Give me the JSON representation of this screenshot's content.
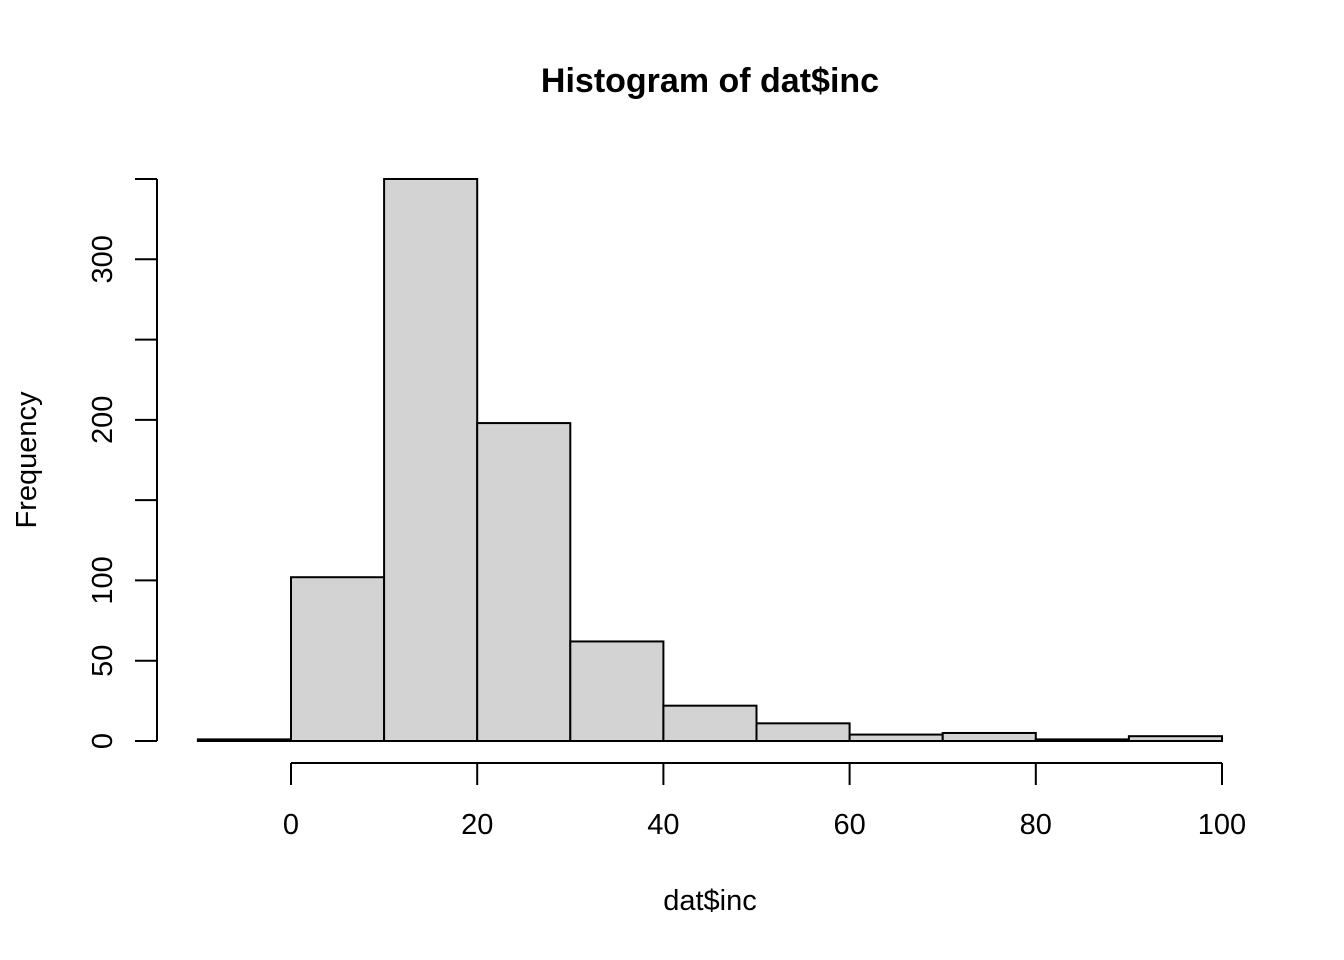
{
  "chart_data": {
    "type": "bar",
    "title": "Histogram of dat$inc",
    "xlabel": "dat$inc",
    "ylabel": "Frequency",
    "bins": [
      {
        "from": -10,
        "to": 0,
        "count": 1
      },
      {
        "from": 0,
        "to": 10,
        "count": 102
      },
      {
        "from": 10,
        "to": 20,
        "count": 350
      },
      {
        "from": 20,
        "to": 30,
        "count": 198
      },
      {
        "from": 30,
        "to": 40,
        "count": 62
      },
      {
        "from": 40,
        "to": 50,
        "count": 22
      },
      {
        "from": 50,
        "to": 60,
        "count": 11
      },
      {
        "from": 60,
        "to": 70,
        "count": 4
      },
      {
        "from": 70,
        "to": 80,
        "count": 5
      },
      {
        "from": 80,
        "to": 90,
        "count": 1
      },
      {
        "from": 90,
        "to": 100,
        "count": 3
      }
    ],
    "xticks": [
      0,
      20,
      40,
      60,
      80,
      100
    ],
    "xtick_labels": [
      "0",
      "20",
      "40",
      "60",
      "80",
      "100"
    ],
    "yticks": [
      0,
      50,
      100,
      150,
      200,
      250,
      300,
      350
    ],
    "ytick_labels": [
      "0",
      "50",
      "100",
      "",
      "200",
      "",
      "300",
      ""
    ],
    "xlim": [
      0,
      100
    ],
    "ylim": [
      0,
      350
    ],
    "grid": false,
    "bar_color": "#d3d3d3",
    "edge_color": "#000000"
  }
}
